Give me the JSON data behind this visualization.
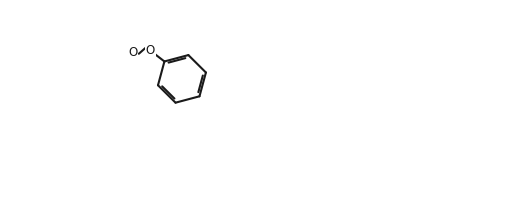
{
  "bg": "#ffffff",
  "lc": "#1a1a1a",
  "lw": 1.5,
  "lw2": 2.5,
  "fs": 8.5,
  "figw": 5.07,
  "figh": 2.21,
  "dpi": 100
}
